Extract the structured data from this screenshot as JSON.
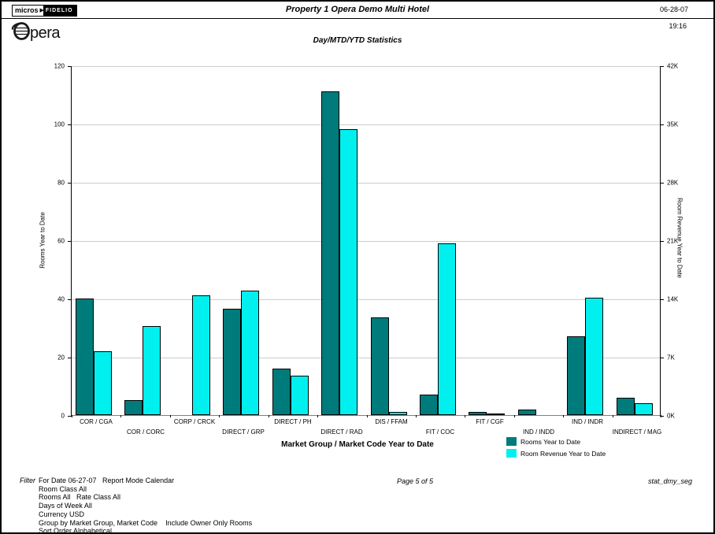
{
  "header": {
    "logo": {
      "micros": "micros",
      "fidelio": "FIDELIO",
      "opera_text": "pera"
    },
    "title": "Property 1 Opera Demo Multi Hotel",
    "date": "06-28-07",
    "time": "19:16",
    "subtitle": "Day/MTD/YTD Statistics"
  },
  "chart_data": {
    "type": "bar",
    "title": "Day/MTD/YTD Statistics",
    "xlabel": "Market Group / Market Code Year to Date",
    "grid": true,
    "legend_position": "bottom-right",
    "left_axis": {
      "label": "Rooms Year to Date",
      "min": 0,
      "max": 120,
      "ticks": [
        0,
        20,
        40,
        60,
        80,
        100,
        120
      ]
    },
    "right_axis": {
      "label": "Room Revenue Year to Date",
      "min": 0,
      "max": 42000,
      "tick_labels": [
        "0K",
        "7K",
        "14K",
        "21K",
        "28K",
        "35K",
        "42K"
      ]
    },
    "categories": [
      "COR / CGA",
      "COR / CORC",
      "CORP / CRCK",
      "DIRECT / GRP",
      "DIRECT / PH",
      "DIRECT / RAD",
      "DIS / FFAM",
      "FIT / COC",
      "FIT / CGF",
      "IND / INDD",
      "IND / INDR",
      "INDIRECT / MAG"
    ],
    "series": [
      {
        "name": "Rooms Year to Date",
        "axis": "left",
        "color": "#007B7B",
        "values": [
          40,
          5,
          0,
          36.5,
          16,
          111,
          33.5,
          7,
          1,
          2,
          27,
          6
        ]
      },
      {
        "name": "Room Revenue Year to Date",
        "axis": "right",
        "color": "#00F0F0",
        "values": [
          7700,
          10700,
          14350,
          14900,
          4700,
          34300,
          350,
          20650,
          100,
          0,
          14100,
          1400
        ]
      }
    ]
  },
  "footer": {
    "filter_label": "Filter",
    "filter_lines": [
      "For Date 06-27-07   Report Mode Calendar",
      "Room Class All",
      "Rooms All   Rate Class All",
      "Days of Week All",
      "Currency USD",
      "Group by Market Group, Market Code    Include Owner Only Rooms",
      "Sort Order Alphabetical"
    ],
    "page": "Page 5 of 5",
    "report_code": "stat_dmy_seg"
  }
}
